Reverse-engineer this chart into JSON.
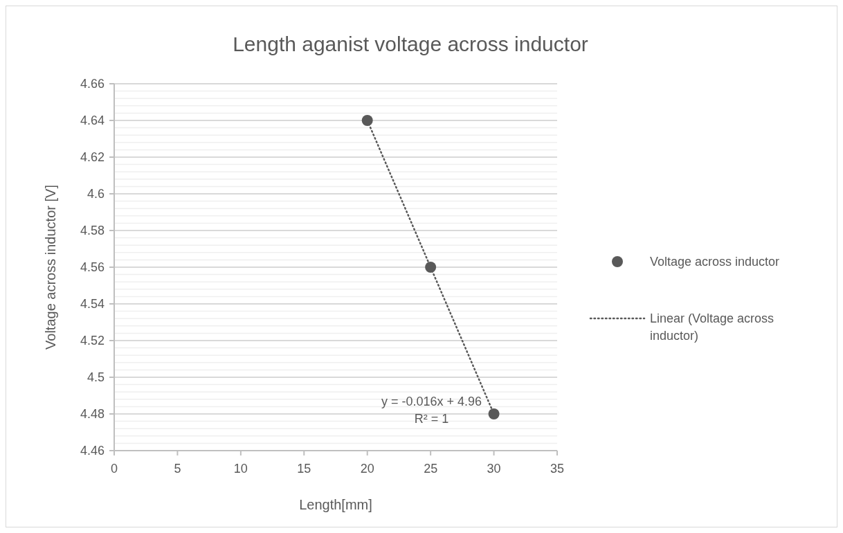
{
  "chart_data": {
    "type": "scatter",
    "title": "Length aganist voltage across inductor",
    "xlabel": "Length[mm]",
    "ylabel": "Voltage across inductor [V]",
    "xlim": [
      0,
      35
    ],
    "xticks": [
      0,
      5,
      10,
      15,
      20,
      25,
      30,
      35
    ],
    "ylim": [
      4.46,
      4.66
    ],
    "yticks": [
      4.46,
      4.48,
      4.5,
      4.52,
      4.54,
      4.56,
      4.58,
      4.6,
      4.62,
      4.64,
      4.66
    ],
    "grid": "y",
    "legend": "right",
    "series": [
      {
        "name": "Voltage across inductor",
        "color": "#595959",
        "marker": "circle",
        "x": [
          20,
          25,
          30
        ],
        "values": [
          4.64,
          4.56,
          4.48
        ]
      },
      {
        "name": "Linear (Voltage across inductor)",
        "type": "line",
        "color": "#595959",
        "line_style": "dotted",
        "marker": "none",
        "x": [
          20,
          30
        ],
        "values": [
          4.64,
          4.48
        ]
      }
    ],
    "annotations": [
      "y = -0.016x + 4.96",
      "R² = 1"
    ]
  }
}
